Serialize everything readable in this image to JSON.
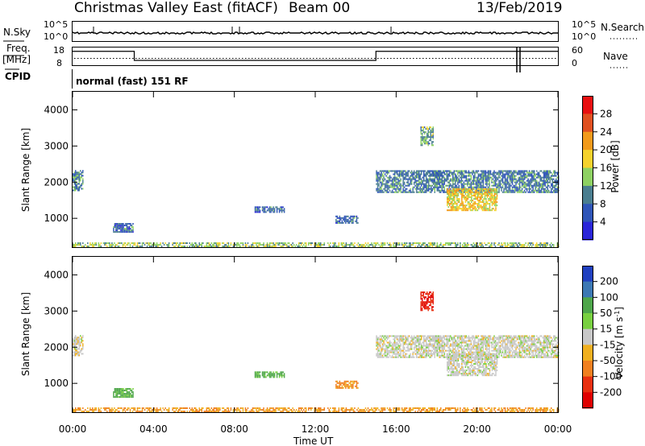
{
  "header": {
    "station": "Christmas Valley East (fitACF)",
    "beam": "Beam 00",
    "date": "13/Feb/2019"
  },
  "status": {
    "nsky_label": "N.Sky",
    "nsearch_label": "N.Search",
    "freq_label": "Freq.",
    "freq_unit": "[MHz]",
    "nave_label": "Nave",
    "cpid_label": "CPID",
    "cpid_value": "normal (fast) 151 RF",
    "noise_ticks_left": [
      "10^5",
      "10^0"
    ],
    "noise_ticks_right": [
      "10^5",
      "10^0"
    ],
    "freq_ticks": [
      "18",
      "8"
    ],
    "nave_ticks": [
      "60",
      "0"
    ],
    "freq_steps": [
      {
        "start_h": 0.0,
        "end_h": 3.05,
        "value": 15.5
      },
      {
        "start_h": 3.05,
        "end_h": 15.0,
        "value": 10.6
      },
      {
        "start_h": 15.0,
        "end_h": 24.0,
        "value": 15.5
      }
    ]
  },
  "chart_data": [
    {
      "type": "heatmap",
      "panel": "power",
      "ylabel": "Slant Range [km]",
      "ylim": [
        180,
        4500
      ],
      "yticks": [
        "1000",
        "2000",
        "3000",
        "4000"
      ],
      "colorbar_label": "Power [dB]",
      "colorbar_ticks": [
        "28",
        "24",
        "20",
        "16",
        "12",
        "8",
        "4"
      ],
      "colorbar_colors": [
        "#2a25d8",
        "#2f55b8",
        "#4a7e90",
        "#8ed162",
        "#f5d22c",
        "#f29a1a",
        "#e05020",
        "#e80f10"
      ],
      "echo_regions": [
        {
          "t_start": 0.0,
          "t_end": 24.0,
          "r_start": 200,
          "r_end": 320,
          "level": 14
        },
        {
          "t_start": 0.0,
          "t_end": 0.5,
          "r_start": 1750,
          "r_end": 2300,
          "level": 10
        },
        {
          "t_start": 15.0,
          "t_end": 24.0,
          "r_start": 1700,
          "r_end": 2300,
          "level": 9
        },
        {
          "t_start": 18.5,
          "t_end": 21.0,
          "r_start": 1200,
          "r_end": 1800,
          "level": 18
        },
        {
          "t_start": 17.2,
          "t_end": 17.8,
          "r_start": 3000,
          "r_end": 3500,
          "level": 12
        },
        {
          "t_start": 9.0,
          "t_end": 10.5,
          "r_start": 1150,
          "r_end": 1300,
          "level": 8
        },
        {
          "t_start": 13.0,
          "t_end": 14.1,
          "r_start": 850,
          "r_end": 1050,
          "level": 8
        },
        {
          "t_start": 2.0,
          "t_end": 3.0,
          "r_start": 600,
          "r_end": 850,
          "level": 8
        }
      ]
    },
    {
      "type": "heatmap",
      "panel": "velocity",
      "ylabel": "Slant Range [km]",
      "xlabel": "Time UT",
      "xticks": [
        "00:00",
        "04:00",
        "08:00",
        "12:00",
        "16:00",
        "20:00",
        "00:00"
      ],
      "ylim": [
        180,
        4500
      ],
      "yticks": [
        "1000",
        "2000",
        "3000",
        "4000"
      ],
      "colorbar_label": "Velocity [m s^-1]",
      "colorbar_ticks": [
        "200",
        "100",
        "50",
        "15",
        "-15",
        "-50",
        "-100",
        "-200"
      ],
      "colorbar_colors": [
        "#2040c0",
        "#3c78b4",
        "#4ea64a",
        "#78d040",
        "#c8c8c8",
        "#f0b020",
        "#f08020",
        "#e83010",
        "#e00000"
      ],
      "echo_regions": [
        {
          "t_start": 0.0,
          "t_end": 24.0,
          "r_start": 200,
          "r_end": 320,
          "velocity": -50
        },
        {
          "t_start": 0.0,
          "t_end": 0.5,
          "r_start": 1750,
          "r_end": 2300,
          "velocity": 0
        },
        {
          "t_start": 15.0,
          "t_end": 24.0,
          "r_start": 1700,
          "r_end": 2300,
          "velocity": 0
        },
        {
          "t_start": 18.5,
          "t_end": 21.0,
          "r_start": 1200,
          "r_end": 1800,
          "velocity": 0
        },
        {
          "t_start": 17.2,
          "t_end": 17.8,
          "r_start": 3000,
          "r_end": 3500,
          "velocity": -200
        },
        {
          "t_start": 9.0,
          "t_end": 10.5,
          "r_start": 1150,
          "r_end": 1300,
          "velocity": 60
        },
        {
          "t_start": 13.0,
          "t_end": 14.1,
          "r_start": 850,
          "r_end": 1050,
          "velocity": -60
        },
        {
          "t_start": 2.0,
          "t_end": 3.0,
          "r_start": 600,
          "r_end": 850,
          "velocity": 60
        }
      ]
    }
  ]
}
